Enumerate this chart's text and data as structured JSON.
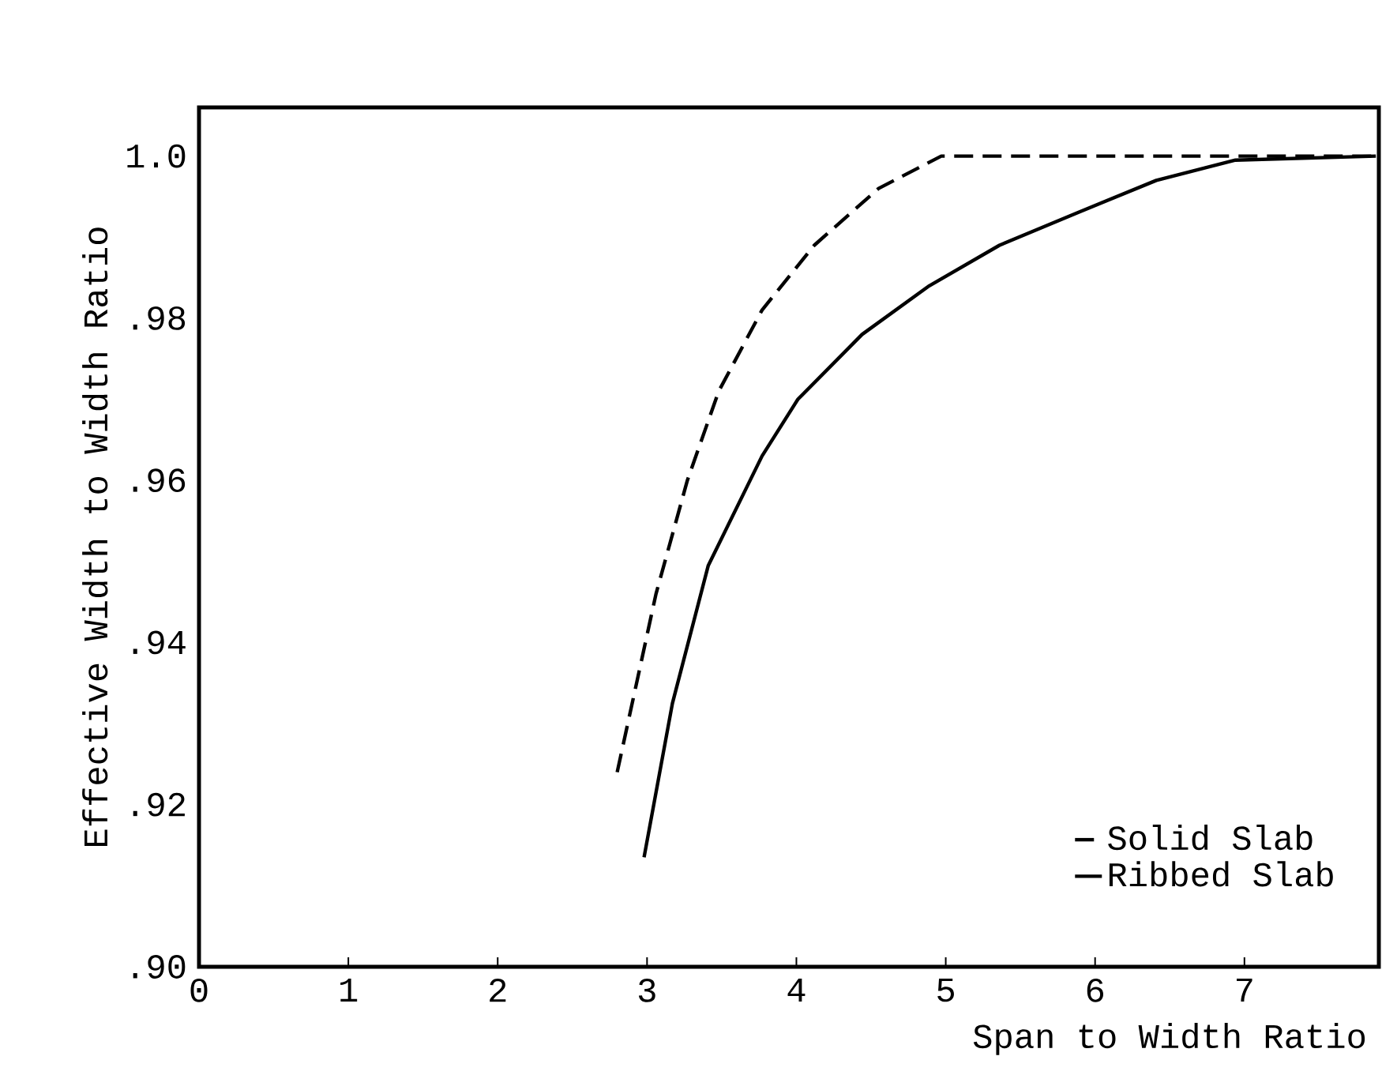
{
  "chart_data": {
    "type": "line",
    "xlabel": "Span to Width Ratio",
    "ylabel": "Effective Width to Width Ratio",
    "xlim": [
      0,
      7.9
    ],
    "xticks": [
      0,
      1,
      2,
      3,
      4,
      5,
      6,
      7
    ],
    "ylim": [
      0.9,
      1.006
    ],
    "yticks": [
      {
        "value": 0.9,
        "label": ".90"
      },
      {
        "value": 0.92,
        "label": ".92"
      },
      {
        "value": 0.94,
        "label": ".94"
      },
      {
        "value": 0.96,
        "label": ".96"
      },
      {
        "value": 0.98,
        "label": ".98"
      },
      {
        "value": 1.0,
        "label": "1.0"
      }
    ],
    "legend": "bottom right",
    "grid": false,
    "marker": "none",
    "series": [
      {
        "name": "Solid Slab",
        "color": "#000000",
        "line_style": "dashed",
        "x": [
          2.8,
          3.06,
          3.27,
          3.48,
          3.77,
          4.12,
          4.55,
          4.97,
          7.88
        ],
        "values": [
          0.924,
          0.946,
          0.96,
          0.971,
          0.981,
          0.989,
          0.996,
          1.0,
          1.0
        ]
      },
      {
        "name": "Ribbed Slab",
        "color": "#000000",
        "line_style": "solid",
        "x": [
          2.98,
          3.17,
          3.41,
          3.77,
          4.01,
          4.44,
          4.89,
          5.36,
          5.88,
          6.41,
          6.94,
          7.88
        ],
        "values": [
          0.9135,
          0.9325,
          0.9495,
          0.963,
          0.97,
          0.978,
          0.984,
          0.989,
          0.993,
          0.997,
          0.9995,
          1.0
        ]
      }
    ]
  }
}
